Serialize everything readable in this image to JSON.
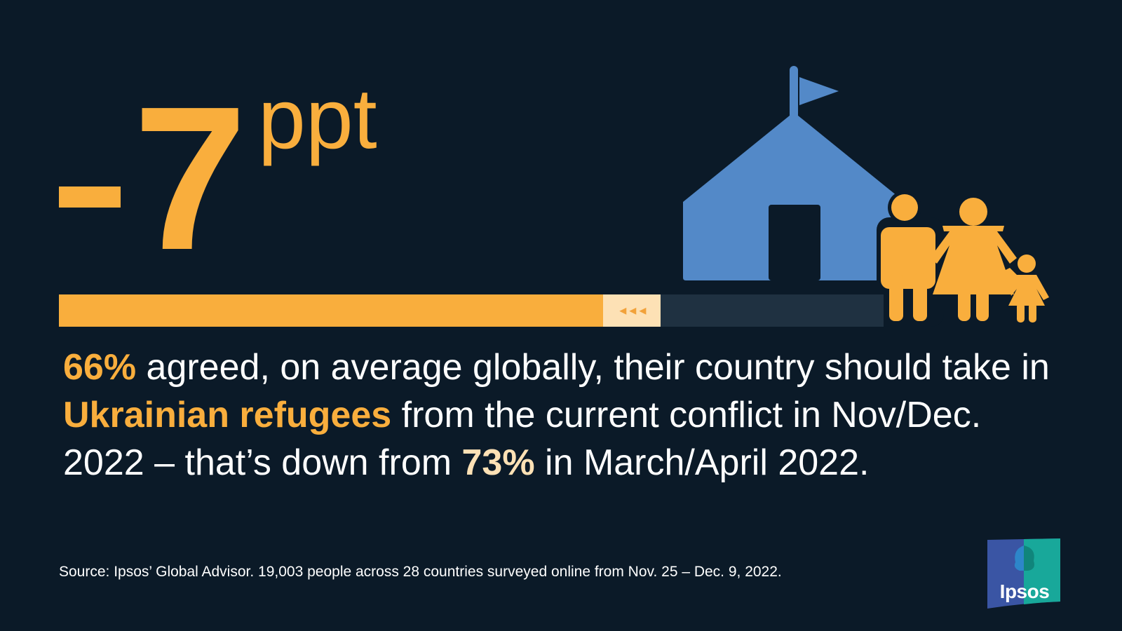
{
  "headline": {
    "minus_sign": "-",
    "value": "7",
    "unit": "ppt"
  },
  "progress": {
    "current_percent": 66,
    "previous_percent": 73,
    "colors": {
      "current": "#f9ae3d",
      "delta": "#fde1b5",
      "track": "#1f3141"
    }
  },
  "statement": {
    "part1_highlight": "66%",
    "part2": " agreed, on average globally, their country should take in ",
    "part3_highlight": "Ukrainian refugees",
    "part4": " from the current conflict in Nov/Dec. 2022 – that’s down from ",
    "part5_highlight": "73%",
    "part6": " in March/April 2022."
  },
  "source": "Source: Ipsos’ Global Advisor. 19,003 people across 28 countries surveyed online from Nov. 25 – Dec. 9, 2022.",
  "illustration": {
    "icons": [
      "tent-icon",
      "flag-icon",
      "man-icon",
      "woman-icon",
      "child-icon"
    ],
    "colors": {
      "tent": "#5389c8",
      "people": "#f9ae3d"
    }
  },
  "logo": {
    "text": "Ipsos",
    "colors": {
      "left": "#3a55a4",
      "right": "#18a89a"
    }
  },
  "colors": {
    "background": "#0b1a28",
    "accent": "#f9ae3d",
    "accent_light": "#fde1b5"
  }
}
